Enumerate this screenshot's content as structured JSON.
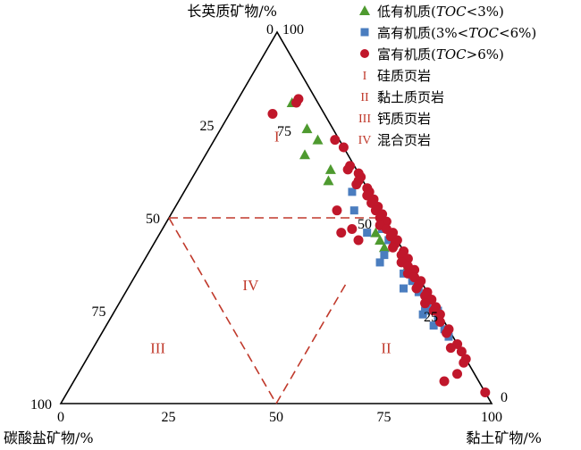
{
  "chart_data": {
    "type": "ternary-scatter",
    "axes": {
      "top": {
        "label": "长英质矿物/%",
        "ticks": [
          "0",
          "25",
          "50",
          "75",
          "100"
        ]
      },
      "left": {
        "label": "碳酸盐矿物/%",
        "ticks": [
          "100",
          "75",
          "50",
          "25",
          "0"
        ]
      },
      "right": {
        "label": "黏土矿物/%",
        "ticks": [
          "0",
          "25",
          "50",
          "75",
          "100"
        ]
      }
    },
    "divider_lines": [
      {
        "from": {
          "quartz": 50,
          "carbonate": 50,
          "clay": 0
        },
        "to": {
          "quartz": 50,
          "carbonate": 0,
          "clay": 50
        }
      },
      {
        "from": {
          "quartz": 50,
          "carbonate": 50,
          "clay": 0
        },
        "to": {
          "quartz": 0,
          "carbonate": 50,
          "clay": 50
        }
      },
      {
        "from": {
          "quartz": 0,
          "carbonate": 50,
          "clay": 50
        },
        "to": {
          "quartz": 33,
          "carbonate": 17,
          "clay": 50
        }
      }
    ],
    "regions": [
      {
        "label": "I",
        "quartz": 72,
        "carbonate": 14,
        "clay": 14
      },
      {
        "label": "II",
        "quartz": 15,
        "carbonate": 17,
        "clay": 68
      },
      {
        "label": "III",
        "quartz": 15,
        "carbonate": 70,
        "clay": 15
      },
      {
        "label": "IV",
        "quartz": 32,
        "carbonate": 40,
        "clay": 28
      }
    ],
    "legend": [
      {
        "marker": "triangle",
        "color": "#4e9a2f",
        "prefix": "低有机质(",
        "italic": "TOC",
        "suffix": "<3%)"
      },
      {
        "marker": "square",
        "color": "#4a7dbf",
        "prefix": "高有机质(3%<",
        "italic": "TOC",
        "suffix": "<6%)"
      },
      {
        "marker": "circle",
        "color": "#c0172b",
        "prefix": "富有机质(",
        "italic": "TOC",
        "suffix": ">6%)"
      },
      {
        "marker": "roman",
        "roman": "I",
        "text": "硅质页岩"
      },
      {
        "marker": "roman",
        "roman": "II",
        "text": "黏土质页岩"
      },
      {
        "marker": "roman",
        "roman": "III",
        "text": "钙质页岩"
      },
      {
        "marker": "roman",
        "roman": "IV",
        "text": "混合页岩"
      }
    ],
    "series": [
      {
        "name": "低有机质(TOC<3%)",
        "marker": "triangle",
        "color": "#4e9a2f",
        "points": [
          [
            81,
            6,
            13
          ],
          [
            74,
            6,
            20
          ],
          [
            71,
            5,
            24
          ],
          [
            67,
            10,
            23
          ],
          [
            63,
            6,
            31
          ],
          [
            60,
            8,
            32
          ],
          [
            46,
            4,
            50
          ],
          [
            44,
            4,
            52
          ],
          [
            42,
            4,
            54
          ],
          [
            36,
            2,
            62
          ]
        ]
      },
      {
        "name": "高有机质(3%<TOC<6%)",
        "marker": "square",
        "color": "#4a7dbf",
        "points": [
          [
            57,
            4,
            39
          ],
          [
            52,
            6,
            42
          ],
          [
            46,
            6,
            48
          ],
          [
            40,
            5,
            55
          ],
          [
            38,
            7,
            55
          ],
          [
            35,
            3,
            62
          ],
          [
            33,
            2,
            65
          ],
          [
            31,
            5,
            64
          ],
          [
            30,
            2,
            68
          ],
          [
            28,
            1,
            71
          ],
          [
            26,
            2,
            72
          ],
          [
            25,
            3,
            72
          ],
          [
            25,
            0,
            75
          ],
          [
            24,
            4,
            72
          ],
          [
            23,
            1,
            76
          ],
          [
            21,
            3,
            76
          ],
          [
            20,
            1,
            79
          ],
          [
            18,
            1,
            81
          ],
          [
            47,
            2,
            51
          ],
          [
            44,
            2,
            54
          ]
        ]
      },
      {
        "name": "富有机质(TOC>6%)",
        "marker": "circle",
        "color": "#c0172b",
        "points": [
          [
            82,
            4,
            14
          ],
          [
            81,
            5,
            14
          ],
          [
            78,
            12,
            10
          ],
          [
            71,
            1,
            28
          ],
          [
            69,
            0,
            31
          ],
          [
            64,
            1,
            35
          ],
          [
            63,
            2,
            35
          ],
          [
            62,
            0,
            38
          ],
          [
            61,
            0,
            39
          ],
          [
            60,
            1,
            39
          ],
          [
            59,
            2,
            39
          ],
          [
            58,
            0,
            42
          ],
          [
            57,
            0,
            43
          ],
          [
            56,
            1,
            43
          ],
          [
            55,
            0,
            45
          ],
          [
            54,
            1,
            45
          ],
          [
            53,
            0,
            47
          ],
          [
            52,
            1,
            47
          ],
          [
            51,
            0,
            49
          ],
          [
            50,
            1,
            49
          ],
          [
            49,
            0,
            51
          ],
          [
            48,
            2,
            50
          ],
          [
            47,
            1,
            52
          ],
          [
            47,
            9,
            44
          ],
          [
            46,
            0,
            54
          ],
          [
            45,
            1,
            54
          ],
          [
            44,
            0,
            56
          ],
          [
            43,
            1,
            56
          ],
          [
            42,
            2,
            56
          ],
          [
            41,
            0,
            59
          ],
          [
            40,
            1,
            59
          ],
          [
            39,
            0,
            61
          ],
          [
            38,
            2,
            60
          ],
          [
            37,
            1,
            62
          ],
          [
            36,
            0,
            64
          ],
          [
            35,
            2,
            63
          ],
          [
            34,
            1,
            65
          ],
          [
            33,
            0,
            67
          ],
          [
            32,
            1,
            67
          ],
          [
            31,
            2,
            67
          ],
          [
            30,
            0,
            70
          ],
          [
            29,
            1,
            70
          ],
          [
            28,
            0,
            72
          ],
          [
            27,
            2,
            71
          ],
          [
            26,
            0,
            74
          ],
          [
            25,
            1,
            74
          ],
          [
            24,
            0,
            76
          ],
          [
            22,
            1,
            77
          ],
          [
            20,
            0,
            80
          ],
          [
            19,
            1,
            80
          ],
          [
            16,
            0,
            84
          ],
          [
            15,
            2,
            83
          ],
          [
            14,
            0,
            86
          ],
          [
            12,
            0,
            88
          ],
          [
            11,
            1,
            88
          ],
          [
            8,
            4,
            88
          ],
          [
            3,
            0,
            97
          ],
          [
            52,
            10,
            38
          ],
          [
            46,
            12,
            42
          ],
          [
            44,
            9,
            47
          ],
          [
            6,
            8,
            86
          ]
        ]
      }
    ]
  }
}
